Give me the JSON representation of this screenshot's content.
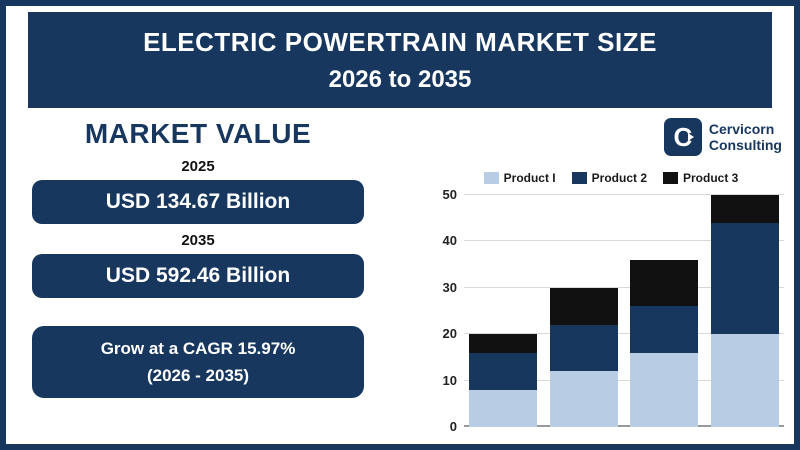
{
  "header": {
    "line1": "ELECTRIC POWERTRAIN MARKET SIZE",
    "line2": "2026 to 2035"
  },
  "left_panel": {
    "heading": "MARKET VALUE",
    "value_2025_year": "2025",
    "value_2025": "USD 134.67 Billion",
    "value_2035_year": "2035",
    "value_2035": "USD 592.46 Billion",
    "cagr_line1": "Grow at a CAGR 15.97%",
    "cagr_line2": "(2026 - 2035)"
  },
  "brand": {
    "icon_letter": "C",
    "name_line1": "Cervicorn",
    "name_line2": "Consulting"
  },
  "colors": {
    "navy": "#17375E",
    "light_blue": "#B8CCE4",
    "black": "#111111"
  },
  "chart_data": {
    "type": "bar",
    "stacked": true,
    "title": "",
    "xlabel": "",
    "ylabel": "",
    "categories": [
      "",
      "",
      "",
      ""
    ],
    "series": [
      {
        "name": "Product I",
        "color": "#B8CCE4",
        "values": [
          8,
          12,
          16,
          20
        ]
      },
      {
        "name": "Product 2",
        "color": "#17375E",
        "values": [
          8,
          10,
          10,
          24
        ]
      },
      {
        "name": "Product 3",
        "color": "#111111",
        "values": [
          4,
          8,
          10,
          6
        ]
      }
    ],
    "ylim": [
      0,
      50
    ],
    "yticks": [
      0,
      10,
      20,
      30,
      40,
      50
    ],
    "grid": true,
    "legend_position": "top"
  }
}
